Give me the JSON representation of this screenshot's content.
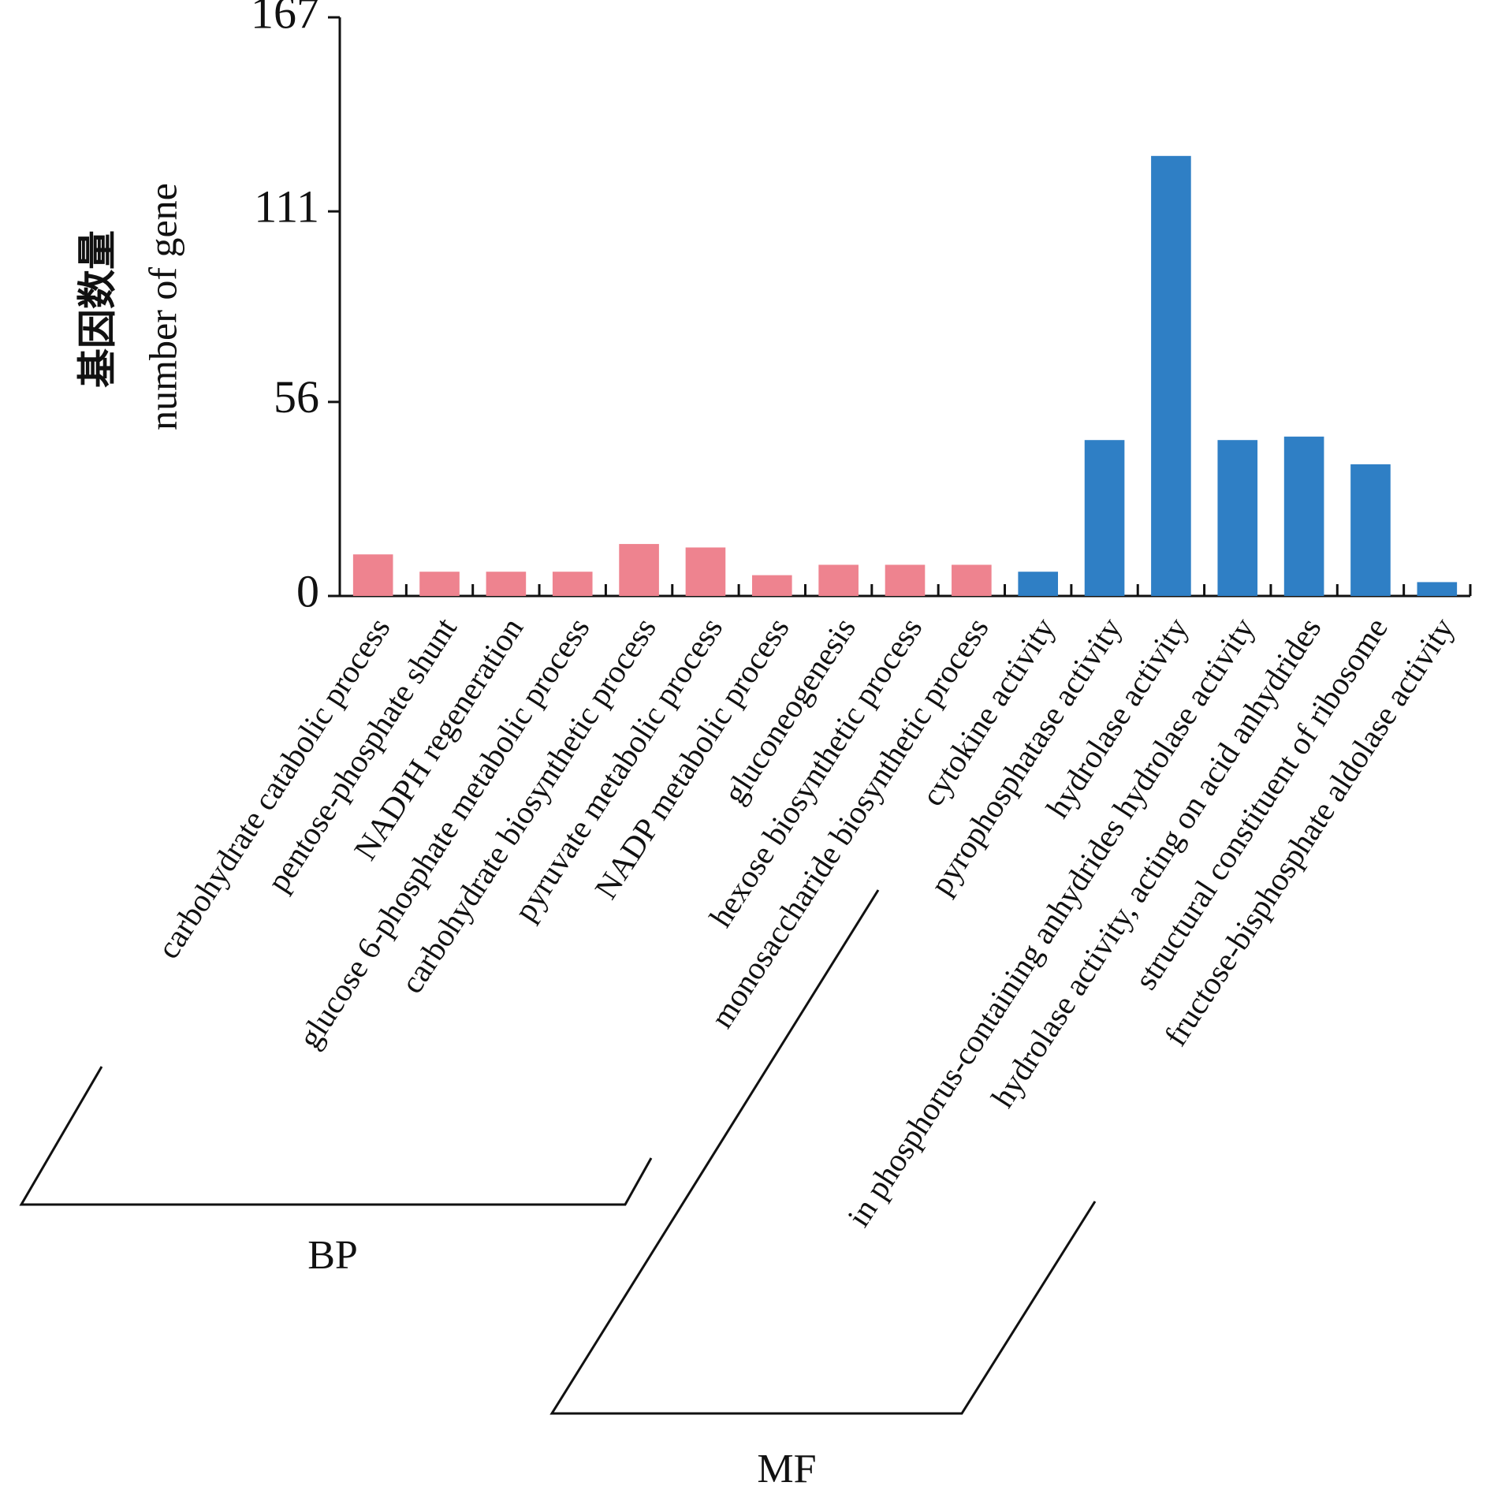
{
  "chart_data": {
    "type": "bar",
    "y_label": [
      "基因数量",
      "number of gene"
    ],
    "categories": [
      "carbohydrate catabolic process",
      "pentose-phosphate shunt",
      "NADPH regeneration",
      "glucose 6-phosphate metabolic process",
      "carbohydrate biosynthetic process",
      "pyruvate metabolic process",
      "NADP metabolic process",
      "gluconeogenesis",
      "hexose biosynthetic process",
      "monosaccharide biosynthetic process",
      "cytokine activity",
      "pyrophosphatase activity",
      "hydrolase activity",
      "in phosphorus-containing anhydrides hydrolase activity",
      "hydrolase activity, acting on acid anhydrides",
      "structural constituent of ribosome",
      "fructose-bisphosphate aldolase activity"
    ],
    "series": [
      {
        "name": "BP",
        "color": "#ee838f",
        "values": [
          12,
          7,
          7,
          7,
          15,
          14,
          6,
          9,
          9,
          9,
          null,
          null,
          null,
          null,
          null,
          null,
          null
        ]
      },
      {
        "name": "MF",
        "color": "#2f7fc5",
        "values": [
          null,
          null,
          null,
          null,
          null,
          null,
          null,
          null,
          null,
          null,
          7,
          45,
          127,
          45,
          46,
          38,
          4
        ]
      }
    ],
    "ylim": [
      0,
      167
    ],
    "yticks": [
      0,
      56,
      111,
      167
    ]
  }
}
